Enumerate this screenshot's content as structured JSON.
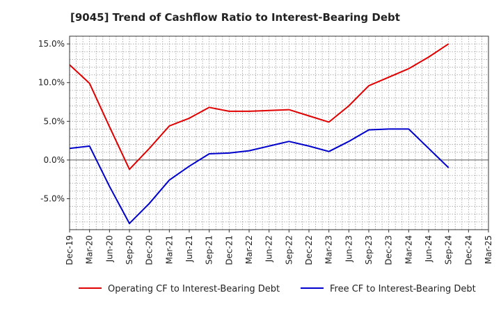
{
  "chart_data": {
    "type": "line",
    "title": "[9045]  Trend of Cashflow Ratio to Interest-Bearing Debt",
    "xlabel": "",
    "ylabel": "",
    "categories": [
      "Dec-19",
      "Mar-20",
      "Jun-20",
      "Sep-20",
      "Dec-20",
      "Mar-21",
      "Jun-21",
      "Sep-21",
      "Dec-21",
      "Mar-22",
      "Jun-22",
      "Sep-22",
      "Dec-22",
      "Mar-23",
      "Jun-23",
      "Sep-23",
      "Dec-23",
      "Mar-24",
      "Jun-24",
      "Sep-24",
      "Dec-24",
      "Mar-25"
    ],
    "ylim": [
      -9,
      16
    ],
    "yticks": [
      -5,
      0,
      5,
      10,
      15
    ],
    "ytick_labels": [
      "-5.0%",
      "0.0%",
      "5.0%",
      "10.0%",
      "15.0%"
    ],
    "grid": true,
    "legend_position": "bottom",
    "series": [
      {
        "name": "Operating CF to Interest-Bearing Debt",
        "color": "#e00000",
        "values": [
          12.3,
          9.9,
          4.3,
          -1.2,
          1.5,
          4.4,
          5.4,
          6.8,
          6.3,
          6.3,
          6.4,
          6.5,
          5.7,
          4.9,
          7.0,
          9.6,
          10.7,
          11.8,
          13.3,
          15.0,
          null,
          null
        ]
      },
      {
        "name": "Free CF to Interest-Bearing Debt",
        "color": "#0000cc",
        "values": [
          1.5,
          1.8,
          -3.4,
          -8.2,
          -5.6,
          -2.6,
          -0.8,
          0.8,
          0.9,
          1.2,
          1.8,
          2.4,
          1.8,
          1.1,
          2.4,
          3.9,
          4.0,
          4.0,
          1.5,
          -1.0,
          null,
          null
        ]
      }
    ]
  }
}
